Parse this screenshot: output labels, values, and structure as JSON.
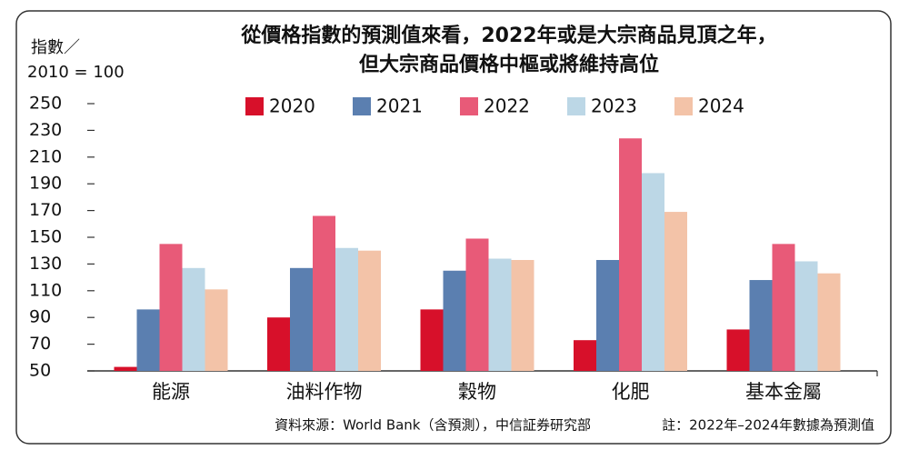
{
  "chart_data": {
    "type": "bar",
    "title": [
      "從價格指數的預測值來看，2022年或是大宗商品見頂之年，",
      "但大宗商品價格中樞或將維持高位"
    ],
    "y_label": [
      "指數／",
      "2010 = 100"
    ],
    "categories": [
      "能源",
      "油料作物",
      "穀物",
      "化肥",
      "基本金屬"
    ],
    "series": [
      {
        "name": "2020",
        "color": "#d7102a",
        "values": [
          53,
          90,
          96,
          73,
          81
        ]
      },
      {
        "name": "2021",
        "color": "#5b7fb0",
        "values": [
          96,
          127,
          125,
          133,
          118
        ]
      },
      {
        "name": "2022",
        "color": "#e85a78",
        "values": [
          145,
          166,
          149,
          224,
          145
        ]
      },
      {
        "name": "2023",
        "color": "#bcd7e6",
        "values": [
          127,
          142,
          134,
          198,
          132
        ]
      },
      {
        "name": "2024",
        "color": "#f3c3a8",
        "values": [
          111,
          140,
          133,
          169,
          123
        ]
      }
    ],
    "ylim": [
      50,
      250
    ],
    "yticks": [
      50,
      70,
      90,
      110,
      130,
      150,
      170,
      190,
      210,
      230,
      250
    ],
    "source": "資料來源：World Bank（含預測），中信証券研究部",
    "note": "註：2022年–2024年數據為預測值"
  }
}
